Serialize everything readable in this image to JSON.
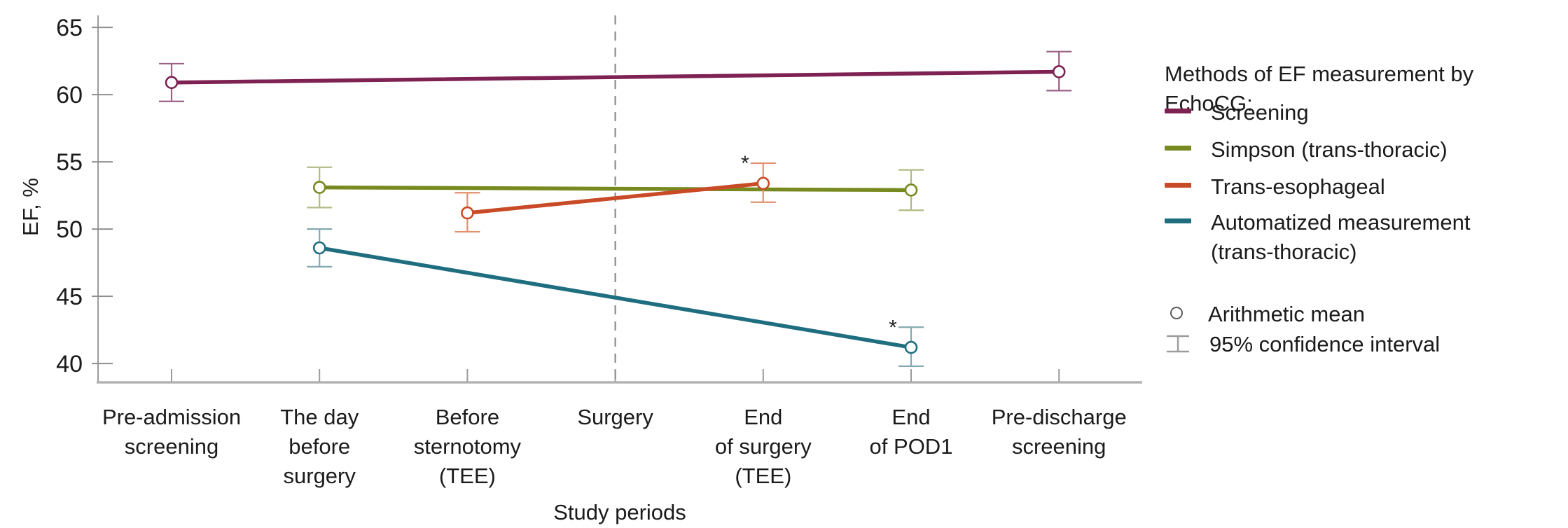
{
  "figure": {
    "y_axis_title": "EF, %",
    "x_axis_title": "Study periods"
  },
  "legend": {
    "title": "Methods of EF measurement by EchoCG:",
    "items": [
      "Screening",
      "Simpson (trans-thoracic)",
      "Trans-esophageal",
      "Automatized measurement (trans-thoracic)"
    ],
    "markers": {
      "mean_label": "Arithmetic mean",
      "ci_label": "95% confidence interval"
    }
  },
  "chart_data": {
    "type": "line",
    "title": "",
    "xlabel": "Study periods",
    "ylabel": "EF, %",
    "ylim": [
      38.5,
      66.5
    ],
    "y_ticks": [
      40,
      45,
      50,
      55,
      60,
      65
    ],
    "grid": false,
    "legend_position": "right",
    "axis_color": "#9b9b9b",
    "text_color": "#1b1b1b",
    "categories": [
      "Pre-admission screening",
      "The day before surgery",
      "Before sternotomy (TEE)",
      "Surgery",
      "End of surgery (TEE)",
      "End of POD1",
      "Pre-discharge screening"
    ],
    "category_label_lines": [
      [
        "Pre-admission",
        "screening"
      ],
      [
        "The day",
        "before",
        "surgery"
      ],
      [
        "Before",
        "sternotomy",
        "(TEE)"
      ],
      [
        "Surgery"
      ],
      [
        "End",
        "of surgery",
        "(TEE)"
      ],
      [
        "End",
        "of POD1"
      ],
      [
        "Pre-discharge",
        "screening"
      ]
    ],
    "divider": {
      "at_category_index": 3,
      "label": "Surgery",
      "style": "dashed",
      "color": "#8c8c8c"
    },
    "marker_meaning": {
      "circle": "Arithmetic mean",
      "error_bar": "95% confidence interval"
    },
    "series": [
      {
        "name": "Screening",
        "color": "#7e2153",
        "ci_color": "#9c6186",
        "points": [
          {
            "x": 0,
            "category": "Pre-admission screening",
            "mean": 60.9,
            "ci_low": 59.5,
            "ci_high": 62.3,
            "annotation": ""
          },
          {
            "x": 6,
            "category": "Pre-discharge screening",
            "mean": 61.7,
            "ci_low": 60.3,
            "ci_high": 63.2,
            "annotation": ""
          }
        ]
      },
      {
        "name": "Simpson (trans-thoracic)",
        "color": "#778a20",
        "ci_color": "#b3ba84",
        "points": [
          {
            "x": 1,
            "category": "The day before surgery",
            "mean": 53.1,
            "ci_low": 51.6,
            "ci_high": 54.6,
            "annotation": ""
          },
          {
            "x": 5,
            "category": "End of POD1",
            "mean": 52.9,
            "ci_low": 51.4,
            "ci_high": 54.4,
            "annotation": ""
          }
        ]
      },
      {
        "name": "Trans-esophageal",
        "color": "#c94a26",
        "ci_color": "#e2906f",
        "points": [
          {
            "x": 2,
            "category": "Before sternotomy (TEE)",
            "mean": 51.2,
            "ci_low": 49.8,
            "ci_high": 52.7,
            "annotation": ""
          },
          {
            "x": 4,
            "category": "End of surgery (TEE)",
            "mean": 53.4,
            "ci_low": 52.0,
            "ci_high": 54.9,
            "annotation": "*"
          }
        ]
      },
      {
        "name": "Automatized measurement (trans-thoracic)",
        "color": "#1f6e80",
        "ci_color": "#84a8b1",
        "points": [
          {
            "x": 1,
            "category": "The day before surgery",
            "mean": 48.6,
            "ci_low": 47.2,
            "ci_high": 50.0,
            "annotation": ""
          },
          {
            "x": 5,
            "category": "End of POD1",
            "mean": 41.2,
            "ci_low": 39.8,
            "ci_high": 42.7,
            "annotation": "*"
          }
        ]
      }
    ],
    "annotations": [
      {
        "text": "*",
        "series": "Trans-esophageal",
        "category": "End of surgery (TEE)"
      },
      {
        "text": "*",
        "series": "Automatized measurement (trans-thoracic)",
        "category": "End of POD1"
      }
    ]
  }
}
